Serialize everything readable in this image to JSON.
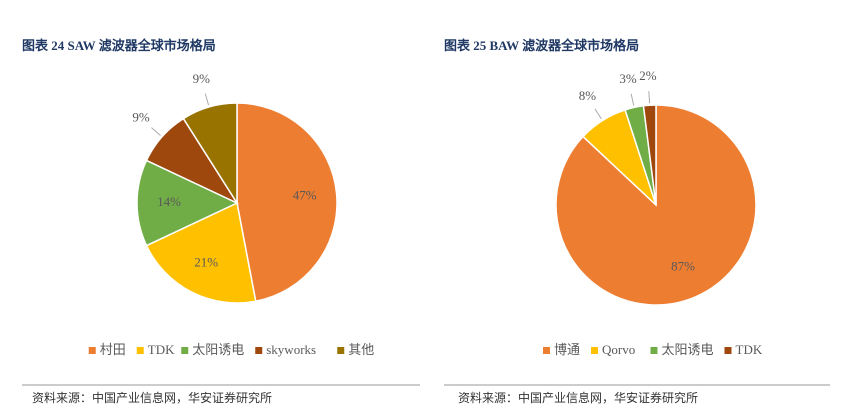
{
  "chart_data": [
    {
      "type": "pie",
      "title": "图表 24 SAW 滤波器全球市场格局",
      "categories": [
        "村田",
        "TDK",
        "太阳诱电",
        "skyworks",
        "其他"
      ],
      "values": [
        47,
        21,
        14,
        9,
        9
      ],
      "value_labels": [
        "47%",
        "21%",
        "14%",
        "9%",
        "9%"
      ],
      "colors": [
        "#ED7D31",
        "#FFC000",
        "#70AD47",
        "#9E480E",
        "#997300"
      ],
      "source": "资料来源：中国产业信息网，华安证券研究所"
    },
    {
      "type": "pie",
      "title": "图表 25 BAW 滤波器全球市场格局",
      "categories": [
        "博通",
        "Qorvo",
        "太阳诱电",
        "TDK"
      ],
      "values": [
        87,
        8,
        3,
        2
      ],
      "value_labels": [
        "87%",
        "8%",
        "3%",
        "2%"
      ],
      "colors": [
        "#ED7D31",
        "#FFC000",
        "#70AD47",
        "#9E480E"
      ],
      "source": "资料来源：中国产业信息网，华安证券研究所"
    }
  ]
}
